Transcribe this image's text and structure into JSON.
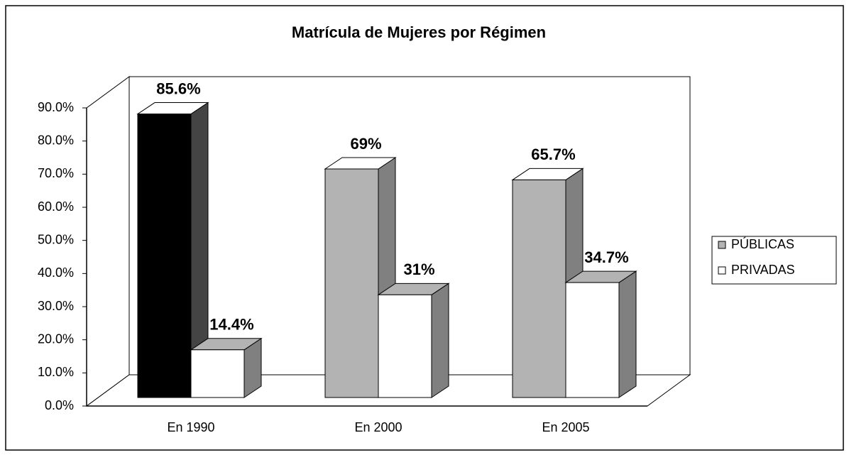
{
  "chart_data": {
    "type": "bar3d",
    "title": "Matrícula de Mujeres por Régimen",
    "categories": [
      "En 1990",
      "En 2000",
      "En 2005"
    ],
    "series": [
      {
        "name": "PÚBLICAS",
        "color": "#b3b3b3",
        "colors": [
          "#000000",
          "#b3b3b3",
          "#b3b3b3"
        ],
        "values": [
          85.6,
          69,
          65.7
        ],
        "value_labels": [
          "85.6%",
          "69%",
          "65.7%"
        ]
      },
      {
        "name": "PRIVADAS",
        "color": "#ffffff",
        "colors": [
          "#ffffff",
          "#ffffff",
          "#ffffff"
        ],
        "values": [
          14.4,
          31,
          34.7
        ],
        "value_labels": [
          "14.4%",
          "31%",
          "34.7%"
        ]
      }
    ],
    "ylim": [
      0,
      90
    ],
    "yticks": [
      {
        "value": 0,
        "label": "0.0%"
      },
      {
        "value": 10,
        "label": "10.0%"
      },
      {
        "value": 20,
        "label": "20.0%"
      },
      {
        "value": 30,
        "label": "30.0%"
      },
      {
        "value": 40,
        "label": "40.0%"
      },
      {
        "value": 50,
        "label": "50.0%"
      },
      {
        "value": 60,
        "label": "60.0%"
      },
      {
        "value": 70,
        "label": "70.0%"
      },
      {
        "value": 80,
        "label": "80.0%"
      },
      {
        "value": 90,
        "label": "90.0%"
      }
    ],
    "legend": "right"
  }
}
